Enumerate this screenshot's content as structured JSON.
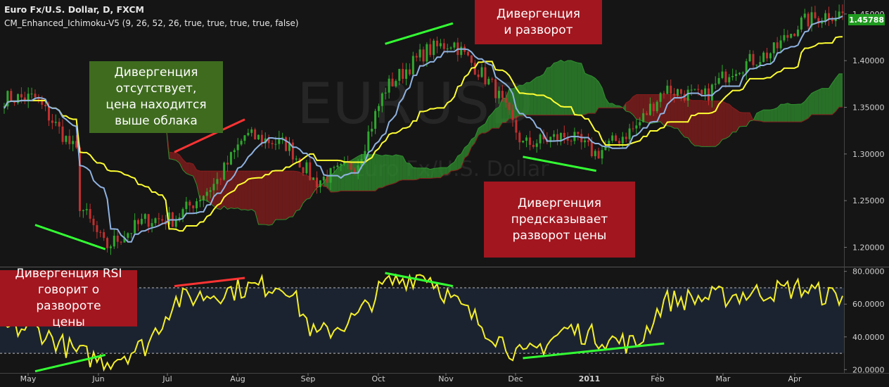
{
  "header": {
    "title": "Euro Fx/U.S. Dollar, D, FXCM",
    "indicator": "CM_Enhanced_Ichimoku-V5 (9, 26, 52, 26, true, true, true, true, false)"
  },
  "watermark": {
    "symbol": "EURUSD",
    "name": "Euro Fx/U.S. Dollar"
  },
  "last_price": "1.45788",
  "annotations": {
    "no_divergence": "Дивергенция\nотсутствует,\nцена находится\nвыше облака",
    "divergence_reversal": "Дивергенция\nи разворот",
    "divergence_predicts": "Дивергенция\nпредсказывает\nразворот цены",
    "rsi_divergence": "Дивергенция RSI\nговорит о развороте\nцены"
  },
  "colors": {
    "background": "#151515",
    "rsi_background": "#1c2330",
    "candle_up": "#2fa82f",
    "candle_down": "#c23030",
    "tenkan": "#ffff33",
    "kijun": "#8fb2e0",
    "cloud_bull": "#2f8f2f",
    "cloud_bear": "#8a1d1d",
    "rsi_line": "#f5f02a",
    "bull_divergence": "#33ff33",
    "bear_divergence": "#ff3333",
    "label_red": "#a2161f",
    "label_green": "#3f6b1f",
    "price_tag": "#1f9a1f"
  },
  "chart_data": [
    {
      "type": "candlestick",
      "ylim": [
        1.18,
        1.465
      ],
      "y_ticks": [
        "1.20000",
        "1.25000",
        "1.30000",
        "1.35000",
        "1.40000",
        "1.45000"
      ],
      "x_ticks": [
        "May",
        "Jun",
        "Jul",
        "Aug",
        "Sep",
        "Oct",
        "Nov",
        "Dec",
        "2011",
        "Feb",
        "Mar",
        "Apr"
      ],
      "close_path": [
        [
          "May",
          1.36
        ],
        [
          "May",
          1.3
        ],
        [
          "May",
          1.25
        ],
        [
          "Jun",
          1.2
        ],
        [
          "Jun",
          1.23
        ],
        [
          "Jul",
          1.23
        ],
        [
          "Jul",
          1.27
        ],
        [
          "Aug",
          1.32
        ],
        [
          "Aug",
          1.31
        ],
        [
          "Sep",
          1.27
        ],
        [
          "Sep",
          1.29
        ],
        [
          "Oct",
          1.37
        ],
        [
          "Oct",
          1.41
        ],
        [
          "Nov",
          1.42
        ],
        [
          "Nov",
          1.37
        ],
        [
          "Dec",
          1.31
        ],
        [
          "Dec",
          1.32
        ],
        [
          "2011",
          1.3
        ],
        [
          "2011",
          1.33
        ],
        [
          "Feb",
          1.37
        ],
        [
          "Feb",
          1.36
        ],
        [
          "Mar",
          1.39
        ],
        [
          "Mar",
          1.41
        ],
        [
          "Apr",
          1.44
        ],
        [
          "Apr",
          1.45
        ]
      ],
      "series": [
        {
          "name": "",
          "kind": "tenkan"
        },
        {
          "name": "",
          "kind": "kijun"
        },
        {
          "name": "",
          "kind": "cloud"
        }
      ],
      "divergence_lines": [
        {
          "color": "bull",
          "from": [
            "May",
            1.224
          ],
          "to": [
            "Jun",
            1.198
          ]
        },
        {
          "color": "bear",
          "from": [
            "Jul",
            1.302
          ],
          "to": [
            "Aug",
            1.337
          ]
        },
        {
          "color": "bull",
          "from": [
            "Oct",
            1.418
          ],
          "to": [
            "Nov",
            1.44
          ]
        },
        {
          "color": "bull",
          "from": [
            "Dec",
            1.297
          ],
          "to": [
            "2011",
            1.282
          ]
        }
      ]
    },
    {
      "type": "line",
      "ylim": [
        18,
        82
      ],
      "y_ticks": [
        "20.0000",
        "40.0000",
        "60.0000",
        "80.0000"
      ],
      "levels": [
        70,
        30
      ],
      "path": [
        [
          "May",
          45
        ],
        [
          "May",
          30
        ],
        [
          "Jun",
          25
        ],
        [
          "Jun",
          35
        ],
        [
          "Jul",
          62
        ],
        [
          "Aug",
          70
        ],
        [
          "Aug",
          72
        ],
        [
          "Sep",
          40
        ],
        [
          "Sep",
          52
        ],
        [
          "Oct",
          72
        ],
        [
          "Oct",
          79
        ],
        [
          "Nov",
          62
        ],
        [
          "Dec",
          27
        ],
        [
          "Dec",
          45
        ],
        [
          "2011",
          40
        ],
        [
          "2011",
          35
        ],
        [
          "Feb",
          62
        ],
        [
          "Mar",
          65
        ],
        [
          "Apr",
          70
        ],
        [
          "Apr",
          65
        ]
      ],
      "divergence_lines": [
        {
          "color": "bull",
          "from": [
            "May",
            19
          ],
          "to": [
            "Jun",
            29
          ]
        },
        {
          "color": "bear",
          "from": [
            "Jul",
            71
          ],
          "to": [
            "Aug",
            76
          ]
        },
        {
          "color": "bull",
          "from": [
            "Oct",
            79
          ],
          "to": [
            "Nov",
            71
          ]
        },
        {
          "color": "bull",
          "from": [
            "Dec",
            27
          ],
          "to": [
            "Feb",
            36
          ]
        }
      ]
    }
  ]
}
